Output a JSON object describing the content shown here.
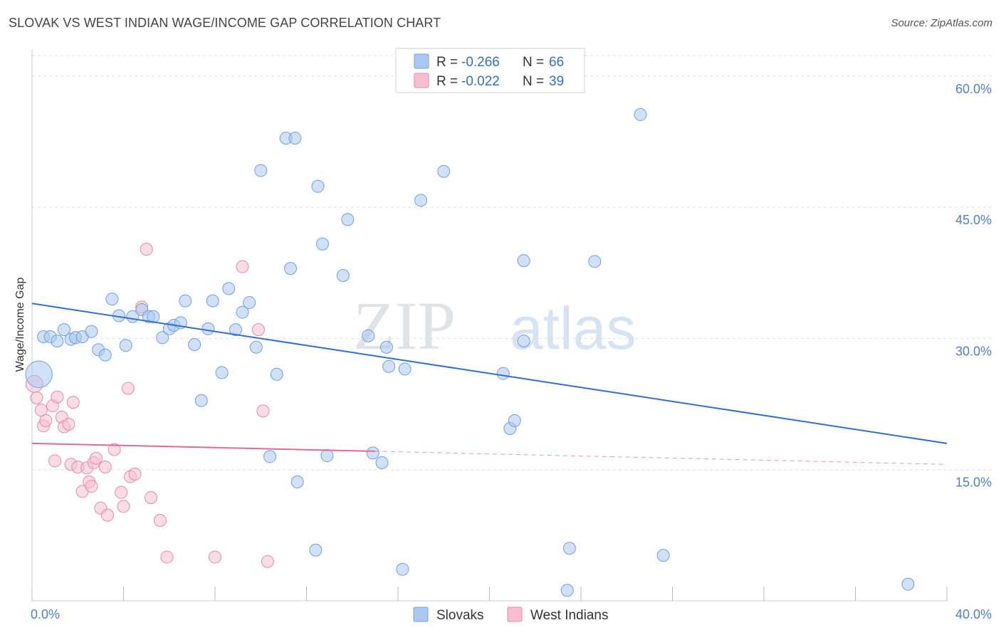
{
  "title": "SLOVAK VS WEST INDIAN WAGE/INCOME GAP CORRELATION CHART",
  "source": "Source: ZipAtlas.com",
  "legend_box": {
    "rows": [
      {
        "r_label": "R = ",
        "r_value": "-0.266",
        "n_label": "N = ",
        "n_value": "66"
      },
      {
        "r_label": "R = ",
        "r_value": "-0.022",
        "n_label": "N = ",
        "n_value": "39"
      }
    ]
  },
  "watermark": {
    "part1": "ZIP",
    "part2": "atlas"
  },
  "colors": {
    "slovaks_fill": "#aac8f0",
    "slovaks_stroke": "#6f9fe0",
    "slovaks_line": "#2f6fd1",
    "west_indians_fill": "#f6bfd0",
    "west_indians_stroke": "#e889a8",
    "west_indians_line": "#e06a95",
    "grid": "#dddddd",
    "tick_label": "#4a7fd0"
  },
  "chart_data": {
    "type": "scatter",
    "title": "SLOVAK VS WEST INDIAN WAGE/INCOME GAP CORRELATION CHART",
    "xlabel": "",
    "ylabel": "Wage/Income Gap",
    "xlim": [
      0,
      40
    ],
    "ylim": [
      0,
      63
    ],
    "x_tick_labels": [
      "0.0%",
      "40.0%"
    ],
    "y_ticks": [
      15,
      30,
      45,
      60
    ],
    "y_tick_labels": [
      "15.0%",
      "30.0%",
      "45.0%",
      "60.0%"
    ],
    "grid": true,
    "legend_position": "bottom-center",
    "series": [
      {
        "name": "Slovaks",
        "r": -0.266,
        "n": 66,
        "trend": {
          "x": [
            0,
            40
          ],
          "y": [
            34.0,
            18.0
          ],
          "dashed_from": null
        },
        "points": [
          [
            0.3,
            25.9,
            2.2
          ],
          [
            0.5,
            30.2,
            1
          ],
          [
            0.8,
            30.2,
            1
          ],
          [
            1.1,
            29.7,
            1
          ],
          [
            1.4,
            31.0,
            1
          ],
          [
            1.7,
            29.9,
            1
          ],
          [
            1.9,
            30.1,
            1
          ],
          [
            2.2,
            30.2,
            1
          ],
          [
            2.6,
            30.8,
            1
          ],
          [
            2.9,
            28.7,
            1
          ],
          [
            3.2,
            28.1,
            1
          ],
          [
            3.5,
            34.5,
            1
          ],
          [
            3.8,
            32.6,
            1
          ],
          [
            4.1,
            29.2,
            1
          ],
          [
            4.4,
            32.5,
            1
          ],
          [
            4.8,
            33.3,
            1
          ],
          [
            5.1,
            32.5,
            1
          ],
          [
            5.3,
            32.5,
            1
          ],
          [
            5.7,
            30.1,
            1
          ],
          [
            6.0,
            31.1,
            1
          ],
          [
            6.2,
            31.5,
            1
          ],
          [
            6.5,
            31.8,
            1
          ],
          [
            6.7,
            34.3,
            1
          ],
          [
            7.1,
            29.3,
            1
          ],
          [
            7.4,
            22.9,
            1
          ],
          [
            7.7,
            31.1,
            1
          ],
          [
            7.9,
            34.3,
            1
          ],
          [
            8.3,
            26.1,
            1
          ],
          [
            8.6,
            35.7,
            1
          ],
          [
            8.9,
            31.0,
            1
          ],
          [
            9.2,
            33.0,
            1
          ],
          [
            9.5,
            34.1,
            1
          ],
          [
            9.8,
            29.0,
            1
          ],
          [
            10.0,
            49.2,
            1
          ],
          [
            10.4,
            16.5,
            1
          ],
          [
            10.7,
            25.9,
            1
          ],
          [
            11.1,
            52.9,
            1
          ],
          [
            11.3,
            38.0,
            1
          ],
          [
            11.5,
            52.9,
            1
          ],
          [
            11.6,
            13.6,
            1
          ],
          [
            12.4,
            5.8,
            1
          ],
          [
            12.5,
            47.4,
            1
          ],
          [
            12.7,
            40.8,
            1
          ],
          [
            12.9,
            16.6,
            1
          ],
          [
            13.6,
            37.2,
            1
          ],
          [
            13.8,
            43.6,
            1
          ],
          [
            14.7,
            30.3,
            1
          ],
          [
            14.9,
            16.9,
            1
          ],
          [
            15.3,
            15.8,
            1
          ],
          [
            15.5,
            29.0,
            1
          ],
          [
            15.6,
            26.8,
            1
          ],
          [
            16.2,
            3.6,
            1
          ],
          [
            16.3,
            26.5,
            1
          ],
          [
            17.0,
            45.8,
            1
          ],
          [
            18.0,
            49.1,
            1
          ],
          [
            20.6,
            26.0,
            1
          ],
          [
            20.9,
            19.7,
            1
          ],
          [
            21.1,
            20.6,
            1
          ],
          [
            21.5,
            38.9,
            1
          ],
          [
            21.5,
            29.7,
            1
          ],
          [
            23.4,
            1.2,
            1
          ],
          [
            23.5,
            6.0,
            1
          ],
          [
            24.6,
            38.8,
            1
          ],
          [
            26.6,
            55.6,
            1
          ],
          [
            27.6,
            5.2,
            1
          ],
          [
            38.3,
            1.9,
            1
          ]
        ]
      },
      {
        "name": "West Indians",
        "r": -0.022,
        "n": 39,
        "trend": {
          "x": [
            0,
            40
          ],
          "y": [
            18.0,
            15.6
          ],
          "dashed_from": 15.0
        },
        "points": [
          [
            0.1,
            24.8,
            1.4
          ],
          [
            0.2,
            23.2,
            1
          ],
          [
            0.4,
            21.8,
            1
          ],
          [
            0.5,
            20.0,
            1
          ],
          [
            0.6,
            20.6,
            1
          ],
          [
            0.9,
            22.3,
            1
          ],
          [
            1.0,
            16.0,
            1
          ],
          [
            1.1,
            23.3,
            1
          ],
          [
            1.3,
            21.0,
            1
          ],
          [
            1.4,
            19.9,
            1
          ],
          [
            1.6,
            20.2,
            1
          ],
          [
            1.7,
            15.6,
            1
          ],
          [
            1.8,
            22.7,
            1
          ],
          [
            2.0,
            15.3,
            1
          ],
          [
            2.2,
            12.5,
            1
          ],
          [
            2.4,
            15.2,
            1
          ],
          [
            2.5,
            13.6,
            1
          ],
          [
            2.6,
            13.1,
            1
          ],
          [
            2.7,
            15.8,
            1
          ],
          [
            2.8,
            16.3,
            1
          ],
          [
            3.0,
            10.6,
            1
          ],
          [
            3.2,
            15.3,
            1
          ],
          [
            3.3,
            9.8,
            1
          ],
          [
            3.6,
            17.3,
            1
          ],
          [
            3.9,
            12.4,
            1
          ],
          [
            4.0,
            10.8,
            1
          ],
          [
            4.2,
            24.3,
            1
          ],
          [
            4.3,
            14.2,
            1
          ],
          [
            4.5,
            14.5,
            1
          ],
          [
            4.8,
            33.6,
            1
          ],
          [
            5.0,
            40.2,
            1
          ],
          [
            5.2,
            11.8,
            1
          ],
          [
            5.6,
            9.2,
            1
          ],
          [
            5.9,
            5.0,
            1
          ],
          [
            8.0,
            5.0,
            1
          ],
          [
            9.2,
            38.2,
            1
          ],
          [
            9.9,
            31.0,
            1
          ],
          [
            10.1,
            21.7,
            1
          ],
          [
            10.3,
            4.5,
            1
          ]
        ]
      }
    ]
  }
}
